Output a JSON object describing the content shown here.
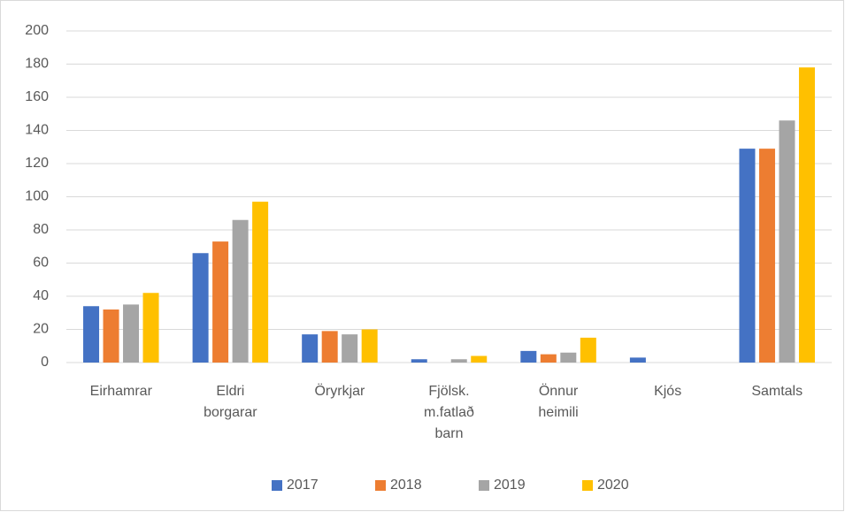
{
  "chart_data": {
    "type": "bar",
    "categories": [
      "Eirhamrar",
      "Eldri borgarar",
      "Öryrkjar",
      "Fjölsk. m.fatlað barn",
      "Önnur heimili",
      "Kjós",
      "Samtals"
    ],
    "series": [
      {
        "name": "2017",
        "color": "#4472c4",
        "values": [
          34,
          66,
          17,
          2,
          7,
          3,
          129
        ]
      },
      {
        "name": "2018",
        "color": "#ed7d31",
        "values": [
          32,
          73,
          19,
          0,
          5,
          0,
          129
        ]
      },
      {
        "name": "2019",
        "color": "#a5a5a5",
        "values": [
          35,
          86,
          17,
          2,
          6,
          0,
          146
        ]
      },
      {
        "name": "2020",
        "color": "#ffc000",
        "values": [
          42,
          97,
          20,
          4,
          15,
          0,
          178
        ]
      }
    ],
    "ylim": [
      0,
      200
    ],
    "yticks": [
      0,
      20,
      40,
      60,
      80,
      100,
      120,
      140,
      160,
      180,
      200
    ],
    "grid": true,
    "legend": "bottom"
  }
}
